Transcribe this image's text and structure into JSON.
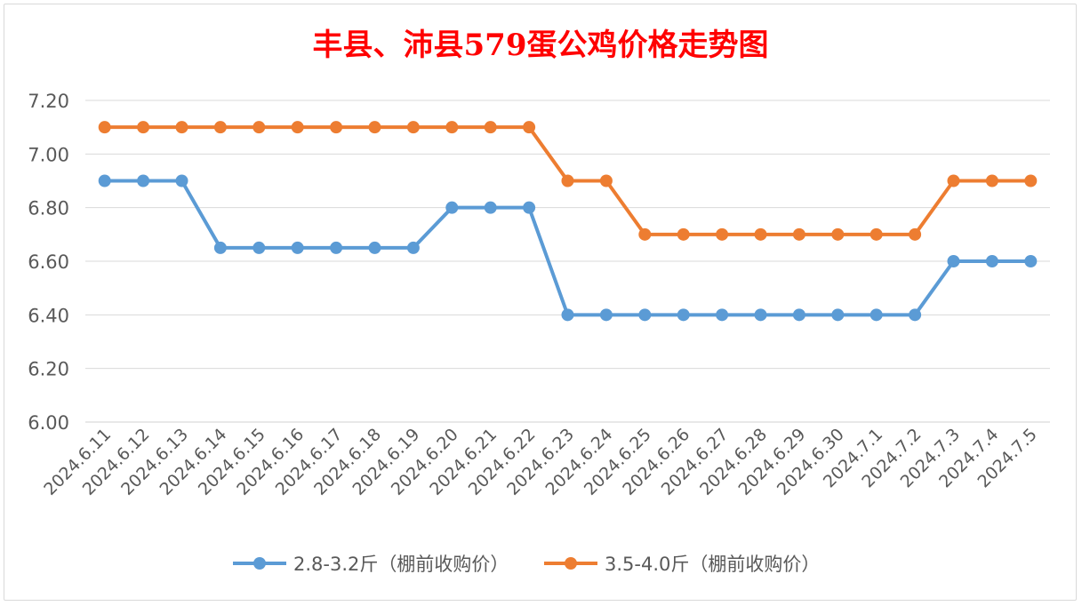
{
  "chart_data": {
    "type": "line",
    "title": "丰县、沛县579蛋公鸡价格走势图",
    "xlabel": "",
    "ylabel": "",
    "ylim": [
      6.0,
      7.2
    ],
    "yticks": [
      "6.00",
      "6.20",
      "6.40",
      "6.60",
      "6.80",
      "7.00",
      "7.20"
    ],
    "grid": true,
    "legend": "bottom",
    "categories": [
      "2024.6.11",
      "2024.6.12",
      "2024.6.13",
      "2024.6.14",
      "2024.6.15",
      "2024.6.16",
      "2024.6.17",
      "2024.6.18",
      "2024.6.19",
      "2024.6.20",
      "2024.6.21",
      "2024.6.22",
      "2024.6.23",
      "2024.6.24",
      "2024.6.25",
      "2024.6.26",
      "2024.6.27",
      "2024.6.28",
      "2024.6.29",
      "2024.6.30",
      "2024.7.1",
      "2024.7.2",
      "2024.7.3",
      "2024.7.4",
      "2024.7.5"
    ],
    "series": [
      {
        "name": "2.8-3.2斤（棚前收购价）",
        "color": "#5b9bd5",
        "values": [
          6.9,
          6.9,
          6.9,
          6.65,
          6.65,
          6.65,
          6.65,
          6.65,
          6.65,
          6.8,
          6.8,
          6.8,
          6.4,
          6.4,
          6.4,
          6.4,
          6.4,
          6.4,
          6.4,
          6.4,
          6.4,
          6.4,
          6.6,
          6.6,
          6.6
        ]
      },
      {
        "name": "3.5-4.0斤（棚前收购价）",
        "color": "#ed7d31",
        "values": [
          7.1,
          7.1,
          7.1,
          7.1,
          7.1,
          7.1,
          7.1,
          7.1,
          7.1,
          7.1,
          7.1,
          7.1,
          6.9,
          6.9,
          6.7,
          6.7,
          6.7,
          6.7,
          6.7,
          6.7,
          6.7,
          6.7,
          6.9,
          6.9,
          6.9
        ]
      }
    ],
    "title_color": "#ff0000"
  }
}
